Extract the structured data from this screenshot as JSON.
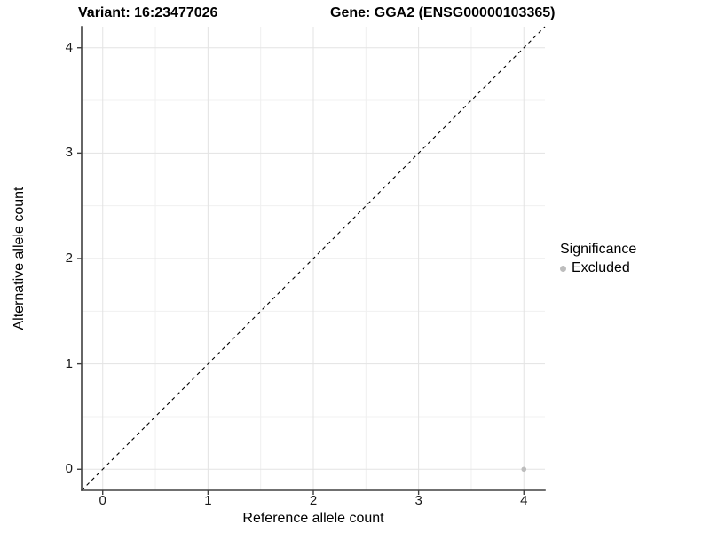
{
  "titles": {
    "variant": "Variant: 16:23477026",
    "gene": "Gene: GGA2 (ENSG00000103365)"
  },
  "legend": {
    "title": "Significance",
    "items": [
      {
        "label": "Excluded",
        "color": "#bdbdbd"
      }
    ]
  },
  "chart_data": {
    "type": "scatter",
    "xlabel": "Reference allele count",
    "ylabel": "Alternative allele count",
    "xlim": [
      -0.2,
      4.2
    ],
    "ylim": [
      -0.2,
      4.2
    ],
    "x_ticks": [
      0,
      1,
      2,
      3,
      4
    ],
    "y_ticks": [
      0,
      1,
      2,
      3,
      4
    ],
    "x_minor_ticks": [
      0.5,
      1.5,
      2.5,
      3.5
    ],
    "y_minor_ticks": [
      0.5,
      1.5,
      2.5,
      3.5
    ],
    "grid": "major+minor",
    "legend_position": "right",
    "reference_line": {
      "type": "identity",
      "style": "dashed",
      "from": -0.2,
      "to": 4.2
    },
    "points": [
      {
        "x": 4,
        "y": 0,
        "significance": "Excluded"
      }
    ]
  },
  "colors": {
    "background": "#ffffff",
    "point": "#bdbdbd",
    "grid_major": "#e3e3e3",
    "grid_minor": "#f0f0f0",
    "axis_line": "#404040",
    "tick_mark": "#404040",
    "dashed_line": "#000000",
    "text": "#000000"
  }
}
